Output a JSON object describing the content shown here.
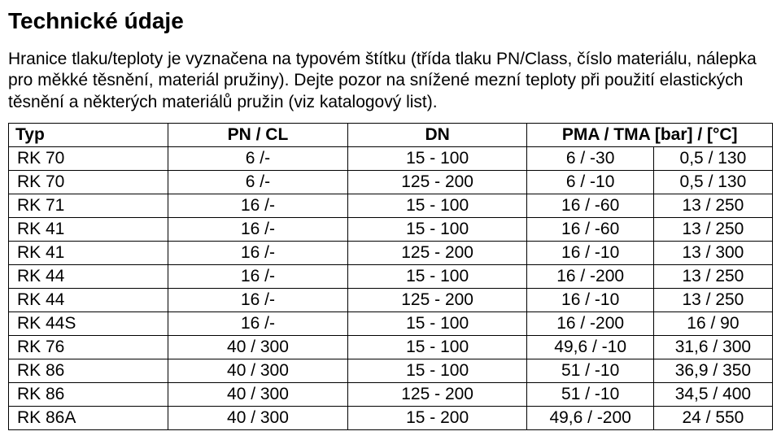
{
  "title": "Technické údaje",
  "paragraph": "Hranice tlaku/teploty je vyznačena na typovém štítku (třída tlaku PN/Class, číslo materiálu, nálepka pro měkké těsnění, materiál pružiny). Dejte pozor na snížené mezní teploty při použití elastických těsnění a některých materiálů pružin (viz katalogový list).",
  "table": {
    "headers": {
      "typ": "Typ",
      "pn": "PN / CL",
      "dn": "DN",
      "pma": "PMA / TMA [bar] / [°C]"
    },
    "rows": [
      {
        "typ": "RK 70",
        "pn": "6 /-",
        "dn": "15 - 100",
        "v1": "6 / -30",
        "v2": "0,5 / 130"
      },
      {
        "typ": "RK 70",
        "pn": "6 /-",
        "dn": "125 - 200",
        "v1": "6 / -10",
        "v2": "0,5 / 130"
      },
      {
        "typ": "RK 71",
        "pn": "16 /-",
        "dn": "15 - 100",
        "v1": "16 / -60",
        "v2": "13 / 250"
      },
      {
        "typ": "RK 41",
        "pn": "16 /-",
        "dn": "15 - 100",
        "v1": "16 / -60",
        "v2": "13 / 250"
      },
      {
        "typ": "RK 41",
        "pn": "16 /-",
        "dn": "125 - 200",
        "v1": "16 / -10",
        "v2": "13 / 300"
      },
      {
        "typ": "RK 44",
        "pn": "16 /-",
        "dn": "15 - 100",
        "v1": "16 / -200",
        "v2": "13 / 250"
      },
      {
        "typ": "RK 44",
        "pn": "16 /-",
        "dn": "125 - 200",
        "v1": "16 / -10",
        "v2": "13 / 250"
      },
      {
        "typ": "RK 44S",
        "pn": "16 /-",
        "dn": "15 - 100",
        "v1": "16 / -200",
        "v2": "16 / 90"
      },
      {
        "typ": "RK 76",
        "pn": "40 / 300",
        "dn": "15 - 100",
        "v1": "49,6 / -10",
        "v2": "31,6 / 300"
      },
      {
        "typ": "RK 86",
        "pn": "40 / 300",
        "dn": "15 - 100",
        "v1": "51 / -10",
        "v2": "36,9 / 350"
      },
      {
        "typ": "RK 86",
        "pn": "40 / 300",
        "dn": "125 - 200",
        "v1": "51 / -10",
        "v2": "34,5 / 400"
      },
      {
        "typ": "RK 86A",
        "pn": "40 / 300",
        "dn": "15 - 200",
        "v1": "49,6 / -200",
        "v2": "24 / 550"
      }
    ]
  },
  "colors": {
    "background": "#ffffff",
    "text": "#000000",
    "border": "#000000"
  },
  "fonts": {
    "title_size_pt": 28,
    "body_size_pt": 21
  }
}
